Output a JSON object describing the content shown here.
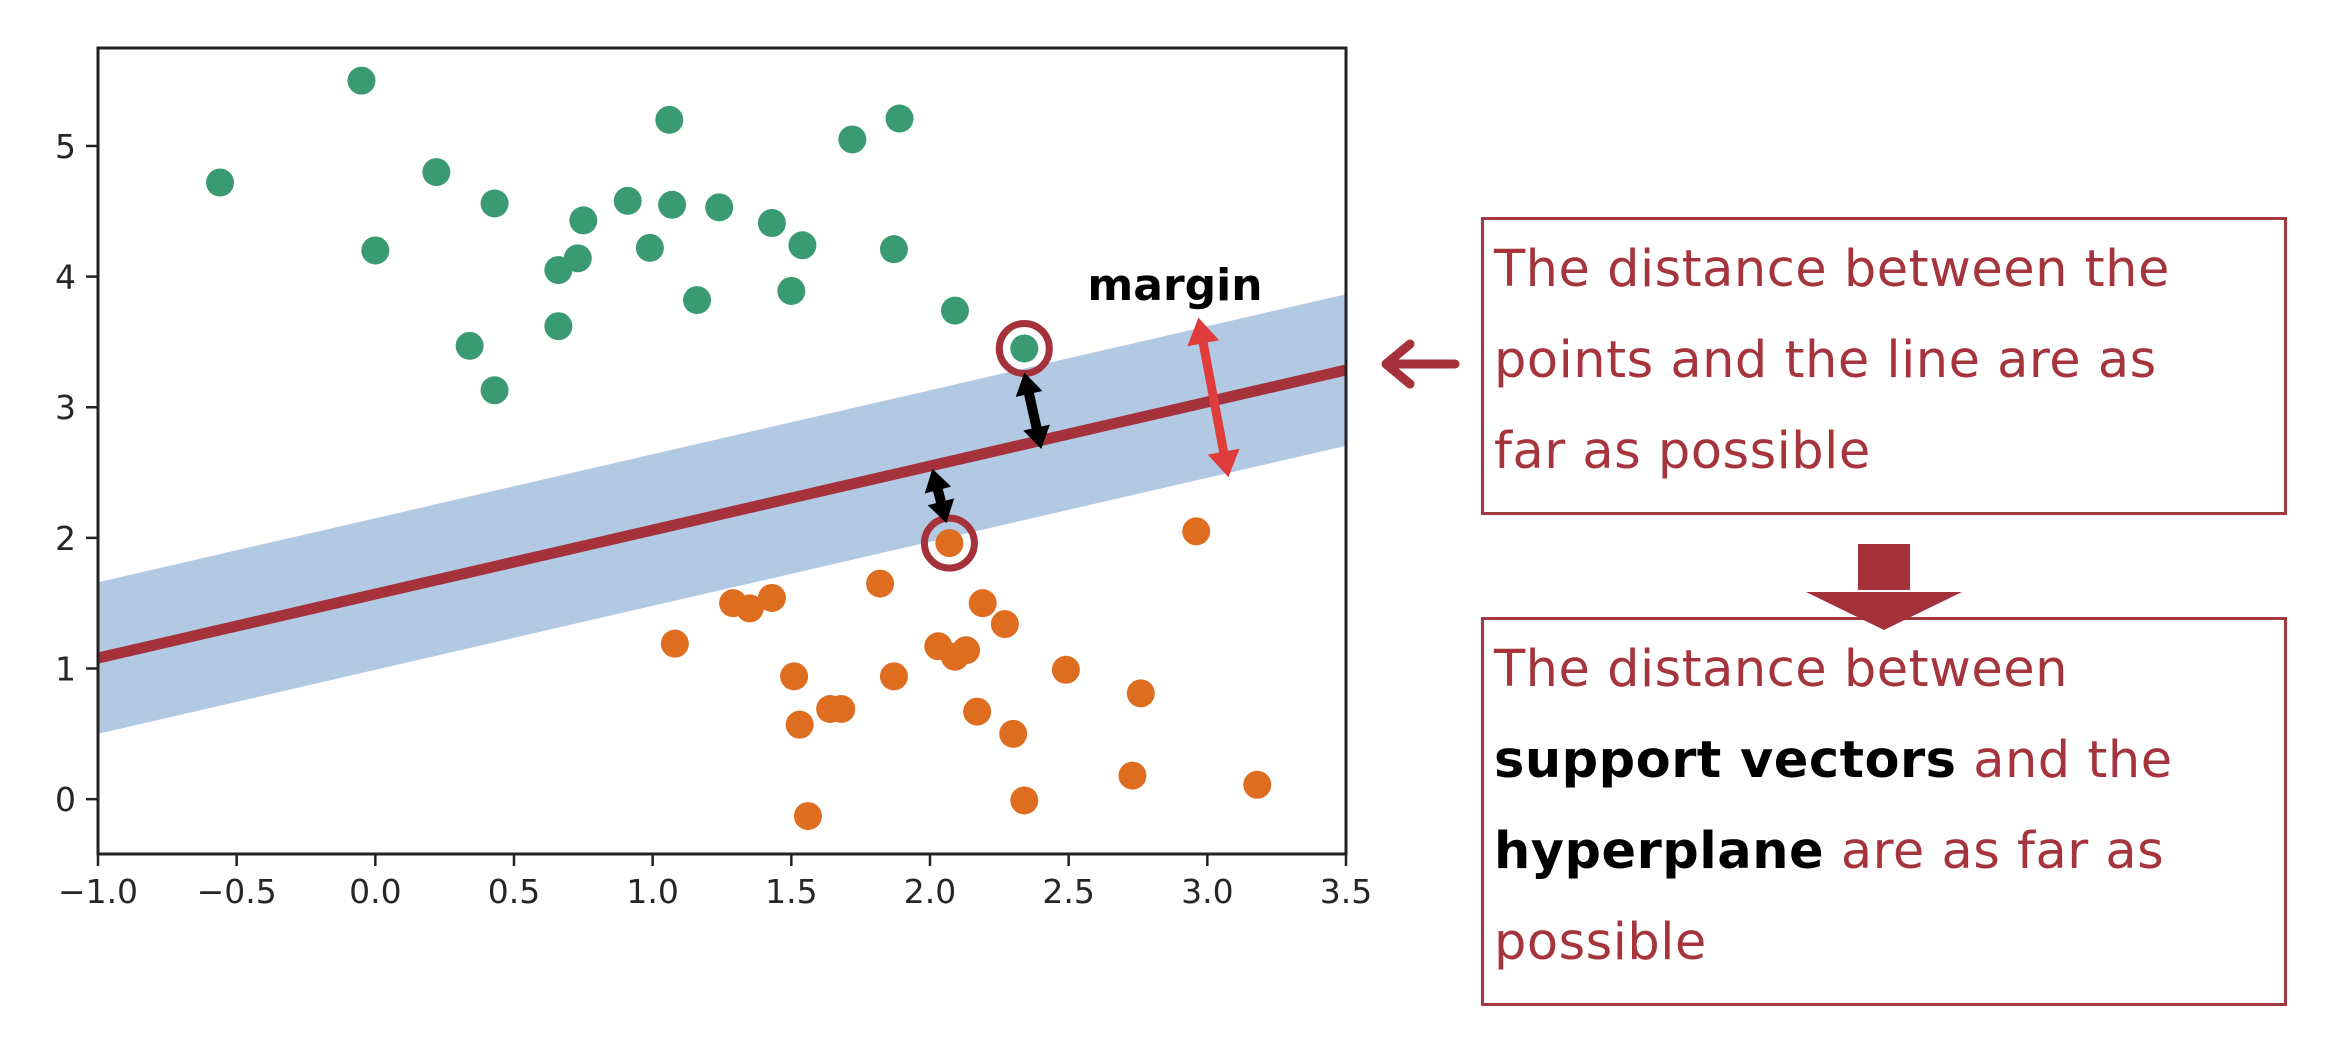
{
  "chart_data": {
    "type": "scatter",
    "xlim": [
      -1.0,
      3.5
    ],
    "ylim": [
      -0.42,
      5.75
    ],
    "x_ticks": [
      "−1.0",
      "−0.5",
      "0.0",
      "0.5",
      "1.0",
      "1.5",
      "2.0",
      "2.5",
      "3.0",
      "3.5"
    ],
    "x_tick_values": [
      -1.0,
      -0.5,
      0.0,
      0.5,
      1.0,
      1.5,
      2.0,
      2.5,
      3.0,
      3.5
    ],
    "y_ticks": [
      "0",
      "1",
      "2",
      "3",
      "4",
      "5"
    ],
    "y_tick_values": [
      0,
      1,
      2,
      3,
      4,
      5
    ],
    "grid": false,
    "series": [
      {
        "color": "#3a9a72",
        "points": [
          [
            -0.56,
            4.72
          ],
          [
            -0.05,
            5.5
          ],
          [
            0.0,
            4.2
          ],
          [
            0.22,
            4.8
          ],
          [
            0.34,
            3.47
          ],
          [
            0.43,
            4.56
          ],
          [
            0.43,
            3.13
          ],
          [
            0.66,
            4.05
          ],
          [
            0.66,
            3.62
          ],
          [
            0.73,
            4.14
          ],
          [
            0.75,
            4.43
          ],
          [
            0.91,
            4.58
          ],
          [
            0.99,
            4.22
          ],
          [
            1.06,
            5.2
          ],
          [
            1.07,
            4.55
          ],
          [
            1.16,
            3.82
          ],
          [
            1.24,
            4.53
          ],
          [
            1.43,
            4.41
          ],
          [
            1.5,
            3.89
          ],
          [
            1.54,
            4.24
          ],
          [
            1.72,
            5.05
          ],
          [
            1.87,
            4.21
          ],
          [
            1.89,
            5.21
          ],
          [
            2.09,
            3.74
          ],
          [
            2.34,
            3.45
          ]
        ]
      },
      {
        "color": "#de6d1f",
        "points": [
          [
            1.08,
            1.19
          ],
          [
            1.29,
            1.5
          ],
          [
            1.35,
            1.46
          ],
          [
            1.43,
            1.54
          ],
          [
            1.51,
            0.94
          ],
          [
            1.53,
            0.57
          ],
          [
            1.56,
            -0.13
          ],
          [
            1.64,
            0.69
          ],
          [
            1.68,
            0.69
          ],
          [
            1.82,
            1.65
          ],
          [
            1.87,
            0.94
          ],
          [
            2.03,
            1.17
          ],
          [
            2.07,
            1.96
          ],
          [
            2.09,
            1.09
          ],
          [
            2.13,
            1.14
          ],
          [
            2.17,
            0.67
          ],
          [
            2.19,
            1.5
          ],
          [
            2.27,
            1.34
          ],
          [
            2.3,
            0.5
          ],
          [
            2.34,
            -0.01
          ],
          [
            2.49,
            0.99
          ],
          [
            2.73,
            0.18
          ],
          [
            2.76,
            0.81
          ],
          [
            2.96,
            2.05
          ],
          [
            3.18,
            0.11
          ]
        ]
      }
    ],
    "hyperplane": {
      "color": "#a5313b",
      "intercept": 1.57,
      "slope": 0.49
    },
    "margin_band": {
      "color": "#aec6e3",
      "half_width": 0.58
    },
    "support_vectors": [
      [
        2.34,
        3.45
      ],
      [
        2.07,
        1.96
      ]
    ],
    "annotations": {
      "margin_label": "margin"
    }
  },
  "colors": {
    "accent": "#a5343d",
    "support_ring": "#a5313b",
    "margin_arrow": "#e03c3c",
    "distance_arrow": "#000000"
  },
  "box1": {
    "line1": "The distance between the",
    "line2": "points and the line are as",
    "line3": "far as possible"
  },
  "box2": {
    "line1": "The distance between",
    "line2_em": "support vectors",
    "line2_rest": " and the",
    "line3_em": "hyperplane",
    "line3_rest": " are as far as",
    "line4": "possible"
  }
}
